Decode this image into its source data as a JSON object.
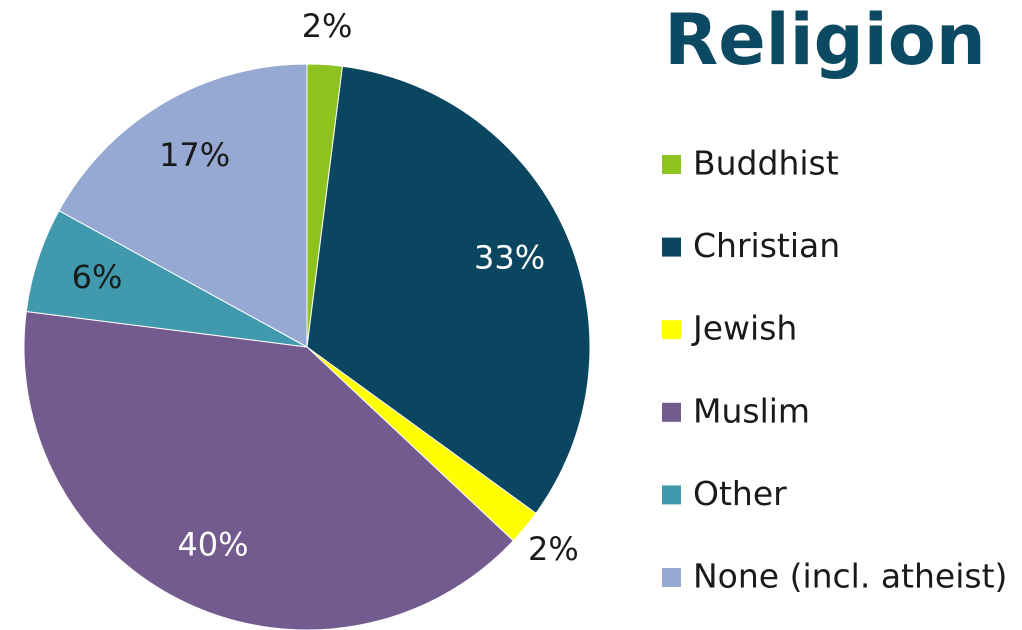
{
  "chart_data": {
    "type": "pie",
    "title": "Religion",
    "categories": [
      "Buddhist",
      "Christian",
      "Jewish",
      "Muslim",
      "Other",
      "None (incl. atheist)"
    ],
    "values": [
      2,
      33,
      2,
      40,
      6,
      17
    ],
    "value_labels": [
      "2%",
      "33%",
      "2%",
      "40%",
      "6%",
      "17%"
    ],
    "colors": [
      "#8dc21f",
      "#0b4660",
      "#ffff00",
      "#735a8f",
      "#4199ad",
      "#95a9d2"
    ],
    "legend": "right"
  }
}
